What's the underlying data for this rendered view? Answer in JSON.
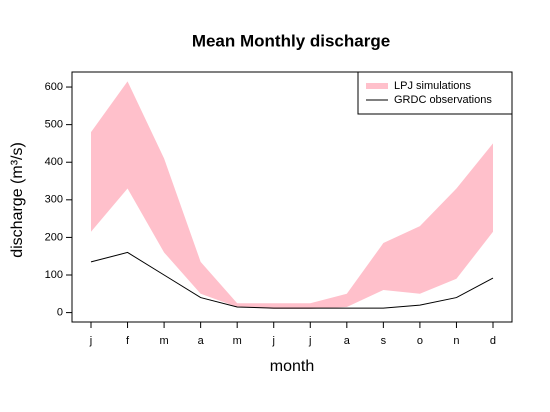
{
  "chart_data": {
    "type": "band-line",
    "title": "Mean Monthly discharge",
    "x_label": "month",
    "y_label": "discharge (m³/s)",
    "categories": [
      "j",
      "f",
      "m",
      "a",
      "m",
      "j",
      "j",
      "a",
      "s",
      "o",
      "n",
      "d"
    ],
    "series": [
      {
        "name": "LPJ simulations",
        "color": "#ffc0cb",
        "upper": [
          480,
          615,
          410,
          135,
          25,
          25,
          25,
          50,
          185,
          230,
          330,
          450
        ],
        "lower": [
          215,
          330,
          160,
          50,
          15,
          10,
          10,
          15,
          60,
          50,
          90,
          215
        ]
      },
      {
        "name": "GRDC observations",
        "color": "#000000",
        "values": [
          135,
          160,
          100,
          40,
          15,
          12,
          12,
          12,
          12,
          20,
          40,
          92
        ]
      }
    ],
    "ylim": [
      -25,
      640
    ],
    "yticks": [
      0,
      100,
      200,
      300,
      400,
      500,
      600
    ],
    "legend": "top-right"
  }
}
